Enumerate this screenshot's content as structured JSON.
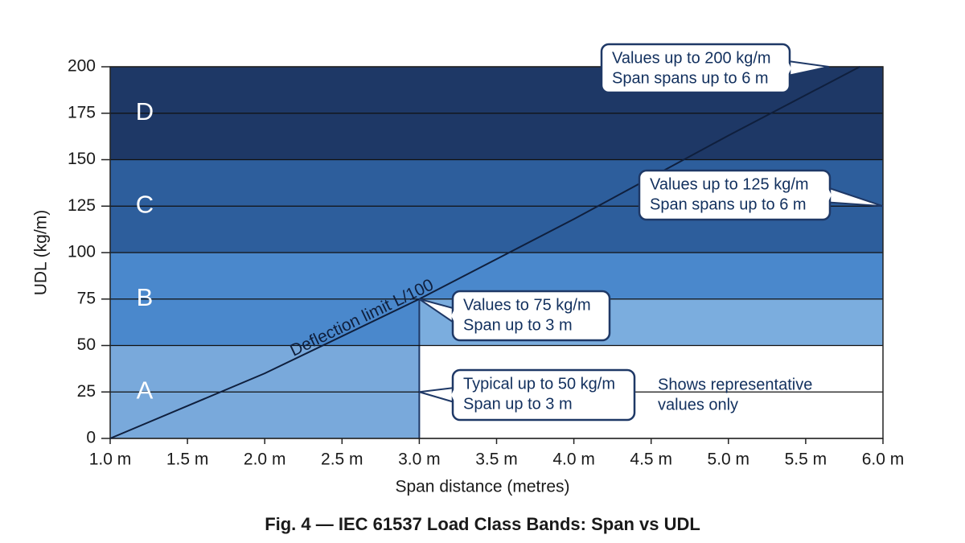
{
  "chart_data": {
    "type": "band-chart",
    "title": "Fig. 4 — IEC 61537 Load Class Bands: Span vs UDL",
    "x_label": "Span distance (metres)",
    "y_label": "UDL (kg/m)",
    "xlim": [
      1.0,
      6.0
    ],
    "ylim": [
      0,
      200
    ],
    "xticks": [
      {
        "value": 1.0,
        "label": "1.0 m"
      },
      {
        "value": 1.5,
        "label": "1.5 m"
      },
      {
        "value": 2.0,
        "label": "2.0 m"
      },
      {
        "value": 2.5,
        "label": "2.5 m"
      },
      {
        "value": 3.0,
        "label": "3.0 m"
      },
      {
        "value": 3.5,
        "label": "3.5 m"
      },
      {
        "value": 4.0,
        "label": "4.0 m"
      },
      {
        "value": 4.5,
        "label": "4.5 m"
      },
      {
        "value": 5.0,
        "label": "5.0 m"
      },
      {
        "value": 5.5,
        "label": "5.5 m"
      },
      {
        "value": 6.0,
        "label": "6.0 m"
      }
    ],
    "yticks": [
      0,
      25,
      50,
      75,
      100,
      125,
      150,
      175,
      200
    ],
    "grid": true,
    "bands": [
      {
        "name": "A",
        "x": [
          1.0,
          3.0
        ],
        "y": [
          0,
          50
        ],
        "color": "#79a9db"
      },
      {
        "name": "B",
        "x": [
          1.0,
          6.0
        ],
        "y": [
          50,
          100
        ],
        "color": "#4a88cc"
      },
      {
        "name": "C",
        "x": [
          1.0,
          6.0
        ],
        "y": [
          100,
          150
        ],
        "color": "#2d5e9c"
      },
      {
        "name": "D",
        "x": [
          1.0,
          6.0
        ],
        "y": [
          150,
          200
        ],
        "color": "#1e3866"
      }
    ],
    "regions": [
      {
        "x": [
          3.0,
          6.0
        ],
        "y": [
          50,
          75
        ],
        "color": "#7badde"
      }
    ],
    "series": [
      {
        "name": "Deflection limit L/100",
        "color": "#0f1f3d",
        "x": [
          1.0,
          2.0,
          3.0,
          4.0,
          5.0,
          5.85
        ],
        "values": [
          0,
          35,
          75,
          118,
          163,
          200
        ]
      }
    ],
    "callouts": [
      {
        "lines": [
          "Values up to 200 kg/m",
          "Span spans up to 6 m"
        ],
        "target": [
          5.65,
          200
        ]
      },
      {
        "lines": [
          "Values up to 125 kg/m",
          "Span spans up to 6 m"
        ],
        "target": [
          6.0,
          125
        ]
      },
      {
        "lines": [
          "Values to 75 kg/m",
          "Span up to 3 m"
        ],
        "target": [
          3.0,
          75
        ]
      },
      {
        "lines": [
          "Typical up to 50 kg/m",
          "Span up to 3 m"
        ],
        "target": [
          3.0,
          25
        ]
      }
    ],
    "note": [
      "Shows representative",
      "values only"
    ]
  }
}
